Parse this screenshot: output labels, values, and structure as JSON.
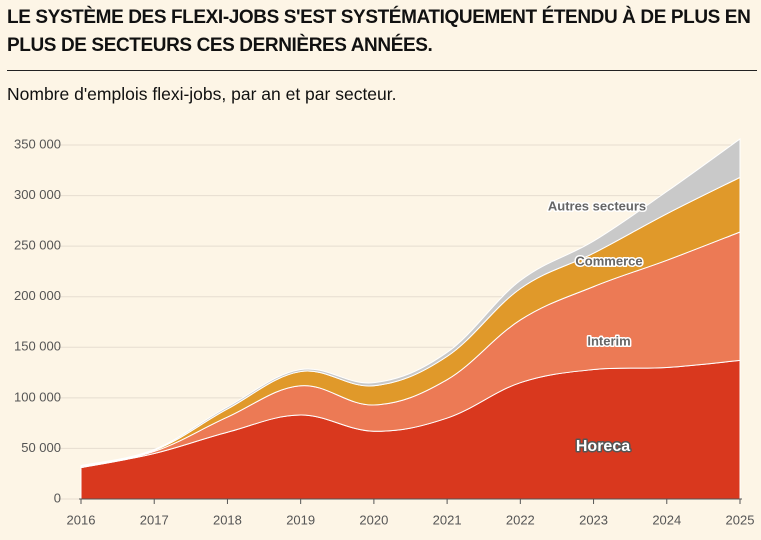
{
  "chart_data": {
    "type": "stacked_area",
    "title": "LE SYSTÈME DES FLEXI-JOBS S'EST SYSTÉMATIQUEMENT ÉTENDU À DE PLUS EN PLUS DE SECTEURS CES DERNIÈRES ANNÉES.",
    "subtitle": "Nombre d'emplois flexi-jobs, par an et par secteur.",
    "x": [
      2016,
      2017,
      2018,
      2019,
      2020,
      2021,
      2022,
      2023,
      2024,
      2025
    ],
    "xlim": [
      2016,
      2025
    ],
    "xticks": [
      2016,
      2017,
      2018,
      2019,
      2020,
      2021,
      2022,
      2023,
      2024,
      2025
    ],
    "ylim": [
      0,
      350000
    ],
    "yticks": [
      0,
      {
        "value": 50000,
        "label": "50 000"
      },
      {
        "value": 100000,
        "label": "100 000"
      },
      {
        "value": 150000,
        "label": "150 000"
      },
      {
        "value": 200000,
        "label": "200 000"
      },
      {
        "value": 250000,
        "label": "250 000"
      },
      {
        "value": 300000,
        "label": "300 000"
      },
      {
        "value": 350000,
        "label": "350 000"
      }
    ],
    "grid": true,
    "series": [
      {
        "name": "Horeca",
        "color": "#d9381e",
        "values": [
          31000,
          45000,
          66000,
          83000,
          67000,
          80000,
          115000,
          128000,
          130000,
          137000
        ]
      },
      {
        "name": "Interim",
        "color": "#ec7a55",
        "values": [
          1000,
          2000,
          15000,
          29000,
          26000,
          38000,
          62000,
          82000,
          106000,
          127000
        ]
      },
      {
        "name": "Commerce",
        "color": "#e0992a",
        "values": [
          500,
          1000,
          8000,
          14000,
          19000,
          23000,
          31000,
          33000,
          46000,
          54000
        ]
      },
      {
        "name": "Autres secteurs",
        "color": "#c9c9c9",
        "values": [
          500,
          1000,
          2000,
          2000,
          3000,
          4000,
          8000,
          12000,
          22000,
          38000
        ]
      }
    ]
  }
}
